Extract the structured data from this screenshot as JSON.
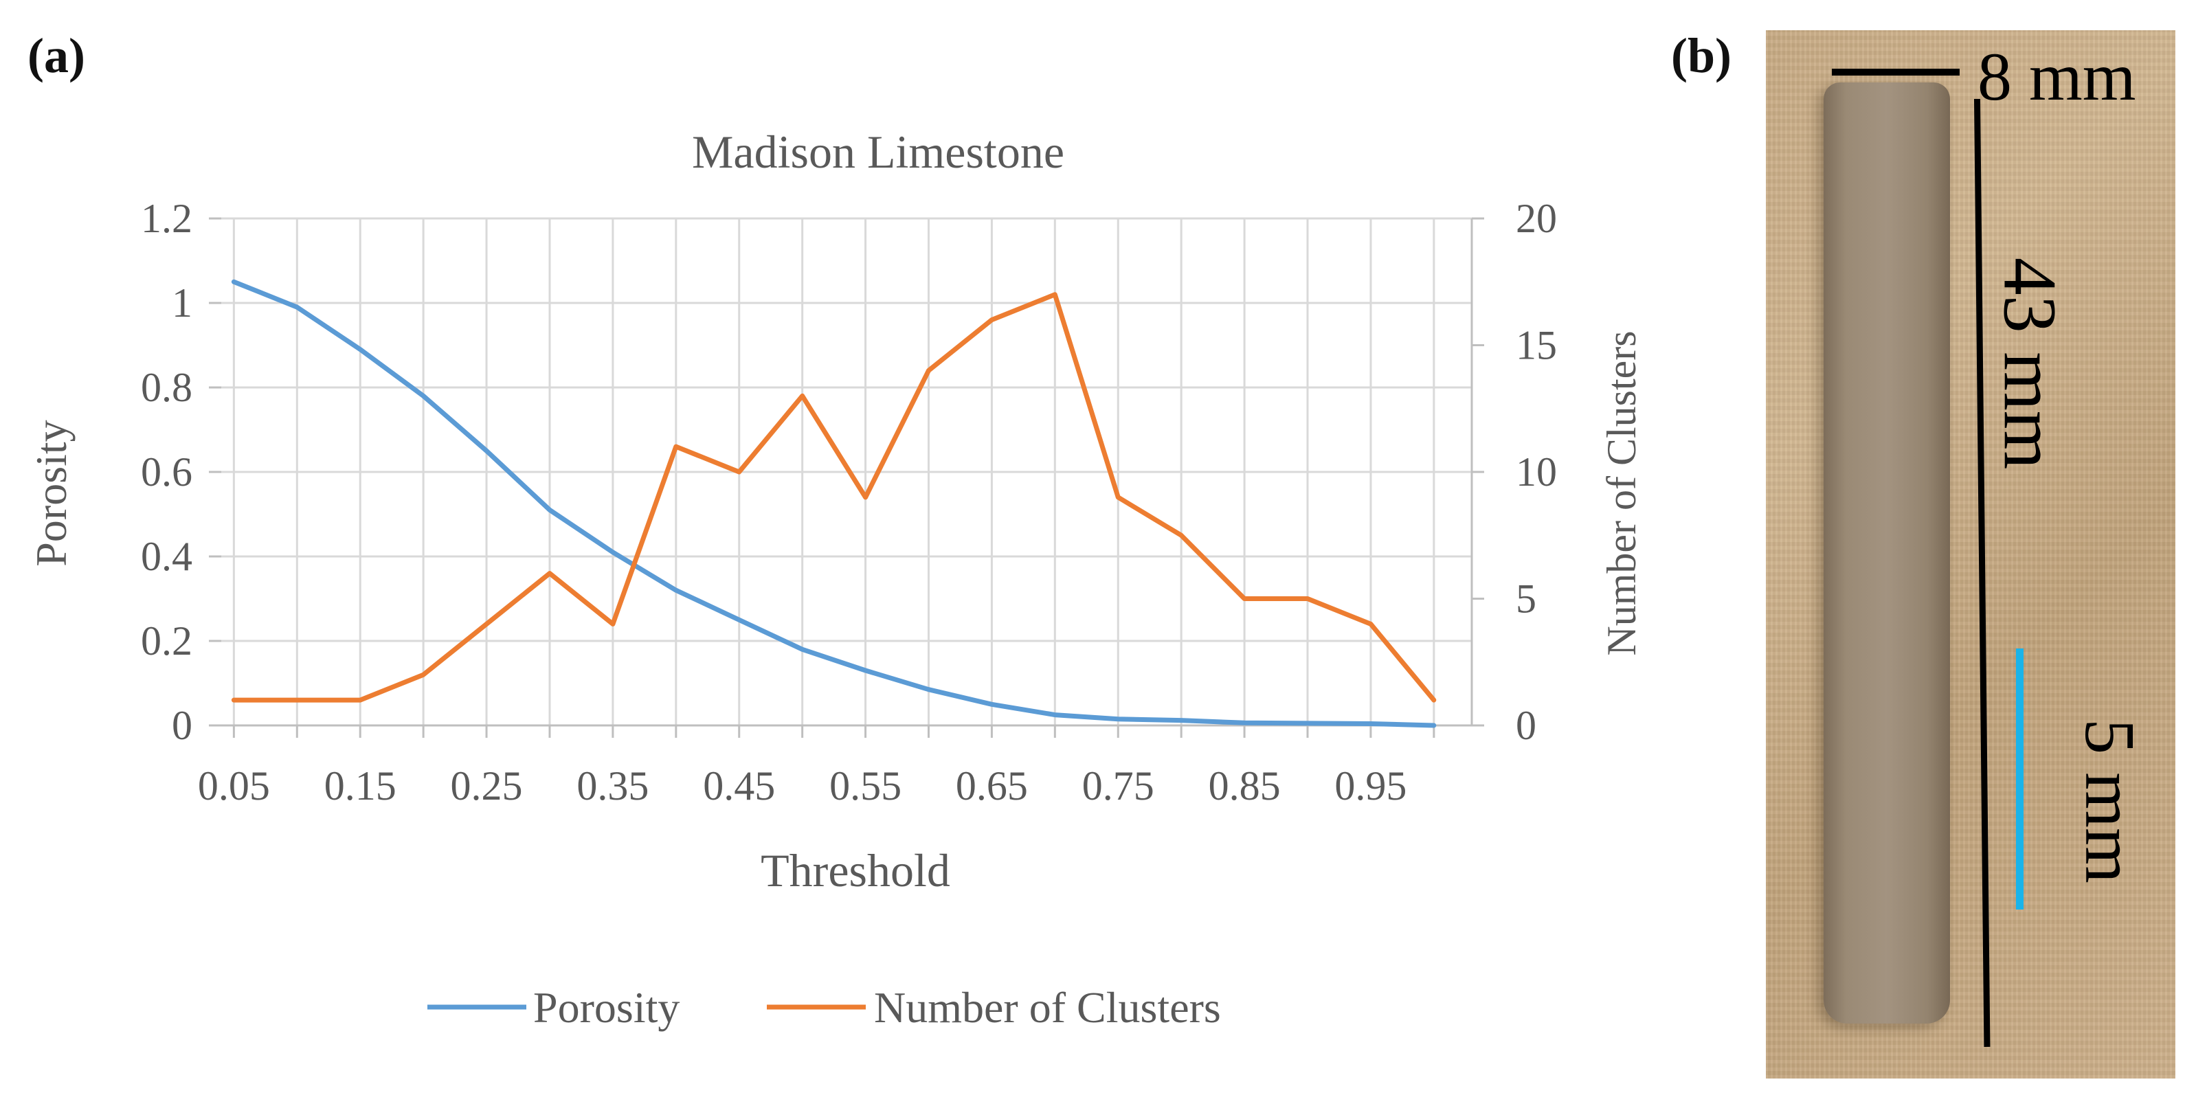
{
  "panel_labels": {
    "a": "(a)",
    "b": "(b)"
  },
  "chart_data": {
    "type": "line",
    "title": "Madison Limestone",
    "xlabel": "Threshold",
    "ylabel_left": "Porosity",
    "ylabel_right": "Number of Clusters",
    "xlim": [
      0.04,
      1.03
    ],
    "ylim_left": [
      0,
      1.2
    ],
    "ylim_right": [
      0,
      20
    ],
    "x_tick_labels": [
      "0.05",
      "0.15",
      "0.25",
      "0.35",
      "0.45",
      "0.55",
      "0.65",
      "0.75",
      "0.85",
      "0.95"
    ],
    "y_left_tick_labels": [
      "0",
      "0.2",
      "0.4",
      "0.6",
      "0.8",
      "1",
      "1.2"
    ],
    "y_right_tick_labels": [
      "0",
      "5",
      "10",
      "15",
      "20"
    ],
    "grid": true,
    "legend_position": "bottom",
    "x": [
      0.05,
      0.1,
      0.15,
      0.2,
      0.25,
      0.3,
      0.35,
      0.4,
      0.45,
      0.5,
      0.55,
      0.6,
      0.65,
      0.7,
      0.75,
      0.8,
      0.85,
      0.9,
      0.95,
      1.0
    ],
    "series": [
      {
        "name": "Porosity",
        "axis": "left",
        "color": "#5b9bd5",
        "values": [
          1.05,
          0.99,
          0.89,
          0.78,
          0.65,
          0.51,
          0.41,
          0.32,
          0.25,
          0.18,
          0.13,
          0.085,
          0.05,
          0.025,
          0.015,
          0.012,
          0.006,
          0.005,
          0.004,
          0.0
        ]
      },
      {
        "name": "Number of Clusters",
        "axis": "right",
        "color": "#ed7d31",
        "values": [
          1,
          1,
          1,
          2,
          4,
          6,
          4,
          11,
          10,
          13,
          9,
          14,
          16,
          17,
          9,
          7.5,
          5,
          5,
          4,
          1
        ]
      }
    ]
  },
  "photo": {
    "scale_width": "8 mm",
    "scale_length": "43 mm",
    "scale_bar": "5 mm",
    "scale_bar_color": "#19b4ea"
  }
}
